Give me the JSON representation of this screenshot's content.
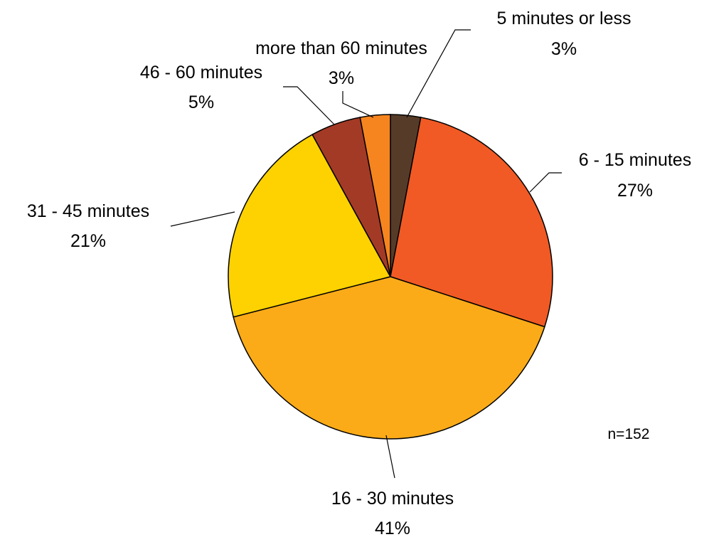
{
  "chart_data": {
    "type": "pie",
    "slices": [
      {
        "label": "5 minutes or less",
        "percent": "3%",
        "value": 3,
        "color": "#563c28"
      },
      {
        "label": "6 - 15 minutes",
        "percent": "27%",
        "value": 27,
        "color": "#f15a24"
      },
      {
        "label": "16 - 30 minutes",
        "percent": "41%",
        "value": 41,
        "color": "#fbab18"
      },
      {
        "label": "31 - 45 minutes",
        "percent": "21%",
        "value": 21,
        "color": "#fdd200"
      },
      {
        "label": "46 - 60 minutes",
        "percent": "5%",
        "value": 5,
        "color": "#a33a26"
      },
      {
        "label": "more than 60 minutes",
        "percent": "3%",
        "value": 3,
        "color": "#f6851f"
      }
    ],
    "note": "n=152"
  }
}
